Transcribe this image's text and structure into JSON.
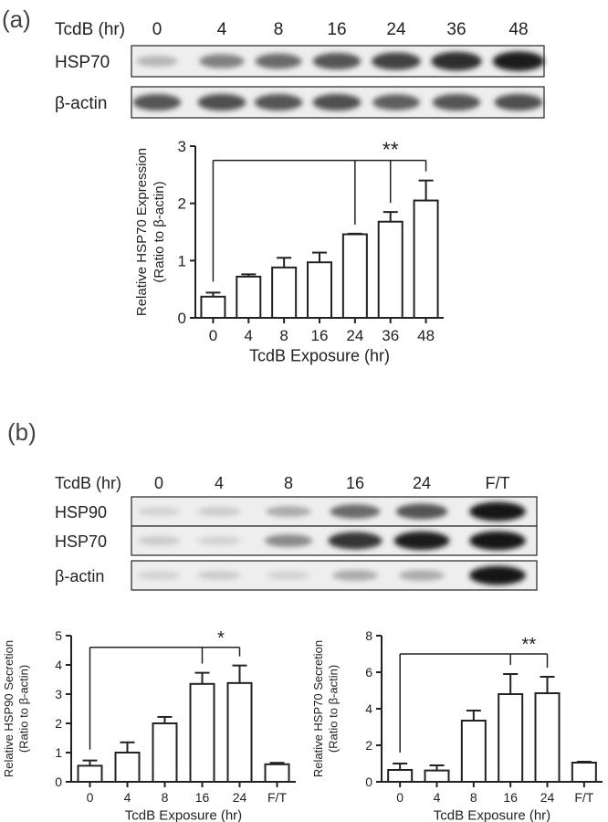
{
  "panels": [
    {
      "label": "(a)",
      "blot": {
        "header_label": "TcdB (hr)",
        "lanes": [
          "0",
          "4",
          "8",
          "16",
          "24",
          "36",
          "48"
        ],
        "rows": [
          {
            "label": "HSP70",
            "intensity": [
              0.25,
              0.5,
              0.6,
              0.7,
              0.78,
              0.88,
              0.95
            ]
          },
          {
            "label": "β-actin",
            "intensity": [
              0.7,
              0.72,
              0.7,
              0.72,
              0.65,
              0.7,
              0.72
            ]
          }
        ]
      }
    },
    {
      "label": "(b)",
      "blot": {
        "header_label": "TcdB (hr)",
        "lanes": [
          "0",
          "4",
          "8",
          "16",
          "24",
          "F/T"
        ],
        "rows": [
          {
            "label": "HSP90",
            "intensity": [
              0.12,
              0.15,
              0.3,
              0.6,
              0.7,
              1.0
            ]
          },
          {
            "label": "HSP70",
            "intensity": [
              0.15,
              0.12,
              0.45,
              0.85,
              0.95,
              1.0
            ]
          },
          {
            "label": "β-actin",
            "intensity": [
              0.12,
              0.15,
              0.12,
              0.3,
              0.3,
              1.0
            ]
          }
        ]
      }
    }
  ],
  "chart_data": [
    {
      "type": "bar",
      "categories": [
        "0",
        "4",
        "8",
        "16",
        "24",
        "36",
        "48"
      ],
      "values": [
        0.37,
        0.72,
        0.88,
        0.97,
        1.46,
        1.68,
        2.05
      ],
      "errors": [
        0.07,
        0.04,
        0.17,
        0.17,
        0.01,
        0.17,
        0.35
      ],
      "xlabel": "TcdB Exposure (hr)",
      "ylabel": [
        "Relative HSP70 Expression",
        "(Ratio to β-actin)"
      ],
      "ylim": [
        0,
        3
      ],
      "yticks": [
        "0",
        "1",
        "2",
        "3"
      ],
      "significance": {
        "label": "**",
        "from": "0",
        "to": [
          "24",
          "36",
          "48"
        ]
      }
    },
    {
      "type": "bar",
      "categories": [
        "0",
        "4",
        "8",
        "16",
        "24",
        "F/T"
      ],
      "values": [
        0.55,
        1.0,
        2.0,
        3.35,
        3.38,
        0.6
      ],
      "errors": [
        0.18,
        0.35,
        0.22,
        0.38,
        0.6,
        0.05
      ],
      "xlabel": "TcdB Exposure (hr)",
      "ylabel": [
        "Relative HSP90 Secretion",
        "(Ratio to β-actin)"
      ],
      "ylim": [
        0,
        5
      ],
      "yticks": [
        "0",
        "1",
        "2",
        "3",
        "4",
        "5"
      ],
      "significance": {
        "label": "*",
        "from": "0",
        "to": [
          "16",
          "24"
        ]
      }
    },
    {
      "type": "bar",
      "categories": [
        "0",
        "4",
        "8",
        "16",
        "24",
        "F/T"
      ],
      "values": [
        0.65,
        0.62,
        3.35,
        4.8,
        4.85,
        1.05
      ],
      "errors": [
        0.35,
        0.28,
        0.55,
        1.1,
        0.9,
        0.05
      ],
      "xlabel": "TcdB Exposure (hr)",
      "ylabel": [
        "Relative HSP70 Secretion",
        "(Ratio to β-actin)"
      ],
      "ylim": [
        0,
        8
      ],
      "yticks": [
        "0",
        "2",
        "4",
        "6",
        "8"
      ],
      "significance": {
        "label": "**",
        "from": "0",
        "to": [
          "16",
          "24"
        ]
      }
    }
  ]
}
